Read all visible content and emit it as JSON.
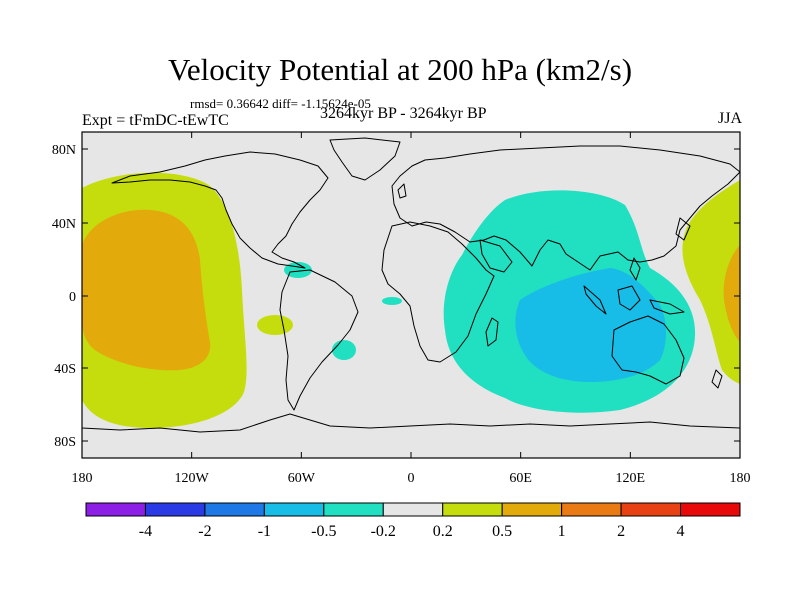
{
  "title": "Velocity Potential at 200 hPa (km2/s)",
  "stats": "rmsd= 0.36642 diff= -1.15624e-05",
  "expt": "Expt = tFmDC-tEwTC",
  "period": "3264kyr BP - 3264kyr BP",
  "season": "JJA",
  "colors": {
    "neutral": "#e6e6e6",
    "pos_02": "#c5dd0c",
    "pos_05": "#e2aa0b",
    "neg_02": "#21dfc1",
    "neg_05": "#17bde6",
    "coast": "#000000"
  },
  "axes": {
    "lat_labels": [
      "80N",
      "40N",
      "0",
      "40S",
      "80S"
    ],
    "lon_labels": [
      "180",
      "120W",
      "60W",
      "0",
      "60E",
      "120E",
      "180"
    ]
  },
  "colorbar": {
    "colors": [
      "#8c1ee6",
      "#2a3be6",
      "#1e78e6",
      "#17bde6",
      "#21dfc1",
      "#e6e6e6",
      "#c5dd0c",
      "#e2aa0b",
      "#ea7a13",
      "#e84214",
      "#e80a0a"
    ],
    "labels": [
      "-4",
      "-2",
      "-1",
      "-0.5",
      "-0.2",
      "0.2",
      "0.5",
      "1",
      "2",
      "4"
    ]
  }
}
